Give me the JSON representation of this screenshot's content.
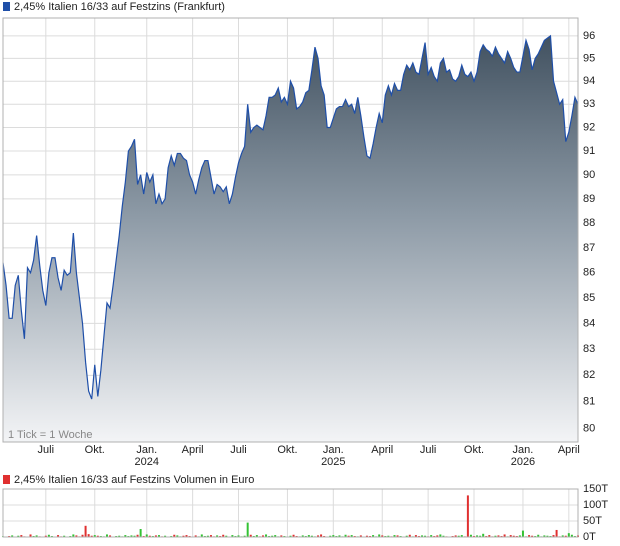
{
  "chart_data": [
    {
      "type": "area",
      "title": "2,45% Italien 16/33 auf Festzins (Frankfurt)",
      "note": "1 Tick = 1 Woche",
      "color": "#1f4fa8",
      "legend_color": "#1f4fa8",
      "log_scale": true,
      "grid": true,
      "values": [
        86.4,
        85.5,
        84.2,
        84.2,
        85.5,
        85.9,
        84.5,
        83.4,
        86.2,
        86.0,
        86.5,
        87.5,
        86.3,
        85.3,
        84.7,
        86.0,
        86.6,
        86.6,
        85.8,
        85.3,
        86.1,
        85.9,
        86.0,
        87.6,
        86.0,
        85.0,
        84.0,
        82.5,
        81.4,
        81.1,
        82.4,
        81.2,
        82.2,
        83.5,
        84.8,
        84.6,
        85.5,
        86.5,
        87.5,
        88.7,
        89.7,
        91.0,
        91.2,
        91.5,
        89.6,
        90.0,
        89.2,
        90.1,
        89.7,
        90.0,
        88.8,
        89.2,
        88.8,
        89.0,
        90.3,
        90.8,
        90.4,
        90.9,
        90.9,
        90.7,
        90.6,
        90.0,
        89.7,
        89.2,
        89.8,
        90.3,
        90.6,
        90.6,
        89.9,
        89.2,
        89.6,
        89.5,
        89.3,
        89.5,
        88.8,
        89.2,
        89.9,
        90.5,
        90.9,
        91.2,
        93.0,
        91.8,
        92.0,
        92.1,
        92.0,
        91.9,
        92.5,
        93.3,
        93.3,
        93.4,
        93.7,
        93.1,
        93.3,
        93.0,
        94.0,
        93.7,
        92.8,
        92.9,
        93.1,
        93.5,
        93.6,
        94.5,
        95.5,
        95.0,
        93.8,
        93.4,
        92.0,
        92.0,
        92.4,
        92.8,
        92.9,
        92.9,
        93.2,
        92.9,
        93.0,
        92.6,
        93.3,
        92.5,
        91.6,
        90.8,
        90.7,
        91.3,
        92.0,
        92.6,
        92.2,
        93.4,
        93.8,
        93.4,
        93.9,
        93.6,
        93.6,
        94.3,
        94.7,
        94.5,
        94.8,
        94.4,
        94.3,
        95.0,
        95.7,
        94.3,
        94.6,
        94.2,
        94.0,
        94.8,
        95.0,
        94.4,
        94.5,
        94.1,
        94.0,
        94.2,
        94.7,
        94.3,
        94.2,
        94.4,
        94.0,
        94.4,
        95.3,
        95.6,
        95.4,
        95.3,
        95.1,
        95.5,
        95.2,
        95.0,
        94.8,
        95.3,
        95.0,
        94.6,
        94.4,
        94.4,
        95.1,
        95.8,
        95.4,
        94.5,
        95.0,
        95.2,
        95.5,
        95.8,
        95.9,
        96.0,
        94.0,
        93.5,
        93.0,
        93.2,
        91.4,
        91.8,
        92.5,
        93.3,
        93.0
      ],
      "xlim": [
        0,
        188
      ],
      "xticks": [
        {
          "value": 14,
          "label": "Juli"
        },
        {
          "value": 30,
          "label": "Okt."
        },
        {
          "value": 47,
          "label": "Jan.",
          "year": "2024"
        },
        {
          "value": 62,
          "label": "April"
        },
        {
          "value": 77,
          "label": "Juli"
        },
        {
          "value": 93,
          "label": "Okt."
        },
        {
          "value": 108,
          "label": "Jan.",
          "year": "2025"
        },
        {
          "value": 124,
          "label": "April"
        },
        {
          "value": 139,
          "label": "Juli"
        },
        {
          "value": 154,
          "label": "Okt."
        },
        {
          "value": 170,
          "label": "Jan.",
          "year": "2026"
        },
        {
          "value": 185,
          "label": "April"
        }
      ],
      "ylim": [
        79.5,
        96.8
      ],
      "yticks": [
        80,
        81,
        82,
        83,
        84,
        85,
        86,
        87,
        88,
        89,
        90,
        91,
        92,
        93,
        94,
        95,
        96
      ]
    },
    {
      "type": "bar",
      "title": "2,45% Italien 16/33 auf Festzins Volumen in Euro",
      "legend_color": "#e03030",
      "up_color": "#33c233",
      "down_color": "#e03030",
      "grid": true,
      "values": [
        2,
        0,
        3,
        5,
        1,
        4,
        6,
        2,
        0,
        8,
        3,
        5,
        2,
        0,
        4,
        7,
        3,
        1,
        6,
        2,
        4,
        0,
        3,
        8,
        5,
        2,
        7,
        35,
        9,
        4,
        6,
        4,
        3,
        2,
        8,
        5,
        0,
        3,
        4,
        2,
        6,
        3,
        5,
        4,
        7,
        25,
        3,
        8,
        4,
        3,
        5,
        6,
        2,
        4,
        0,
        3,
        7,
        5,
        2,
        4,
        6,
        3,
        0,
        5,
        2,
        8,
        3,
        4,
        6,
        2,
        5,
        3,
        7,
        4,
        0,
        6,
        3,
        5,
        2,
        4,
        45,
        7,
        3,
        6,
        2,
        5,
        8,
        3,
        4,
        6,
        2,
        5,
        3,
        0,
        4,
        7,
        3,
        2,
        5,
        3,
        6,
        4,
        2,
        5,
        8,
        3,
        0,
        4,
        6,
        3,
        5,
        2,
        7,
        4,
        6,
        3,
        2,
        5,
        0,
        4,
        3,
        6,
        2,
        8,
        5,
        3,
        4,
        2,
        6,
        5,
        3,
        0,
        4,
        7,
        2,
        6,
        3,
        5,
        4,
        2,
        6,
        3,
        5,
        8,
        4,
        2,
        0,
        3,
        5,
        4,
        6,
        2,
        130,
        7,
        3,
        5,
        4,
        10,
        3,
        6,
        2,
        4,
        5,
        3,
        8,
        2,
        6,
        4,
        3,
        5,
        20,
        2,
        6,
        4,
        3,
        7,
        2,
        5,
        4,
        3,
        6,
        22,
        2,
        5,
        4,
        12,
        7,
        3,
        5
      ],
      "ylim": [
        0,
        150
      ],
      "yticks": [
        {
          "value": 0,
          "label": "0T"
        },
        {
          "value": 50,
          "label": "50T"
        },
        {
          "value": 100,
          "label": "100T"
        },
        {
          "value": 150,
          "label": "150T"
        }
      ]
    }
  ]
}
